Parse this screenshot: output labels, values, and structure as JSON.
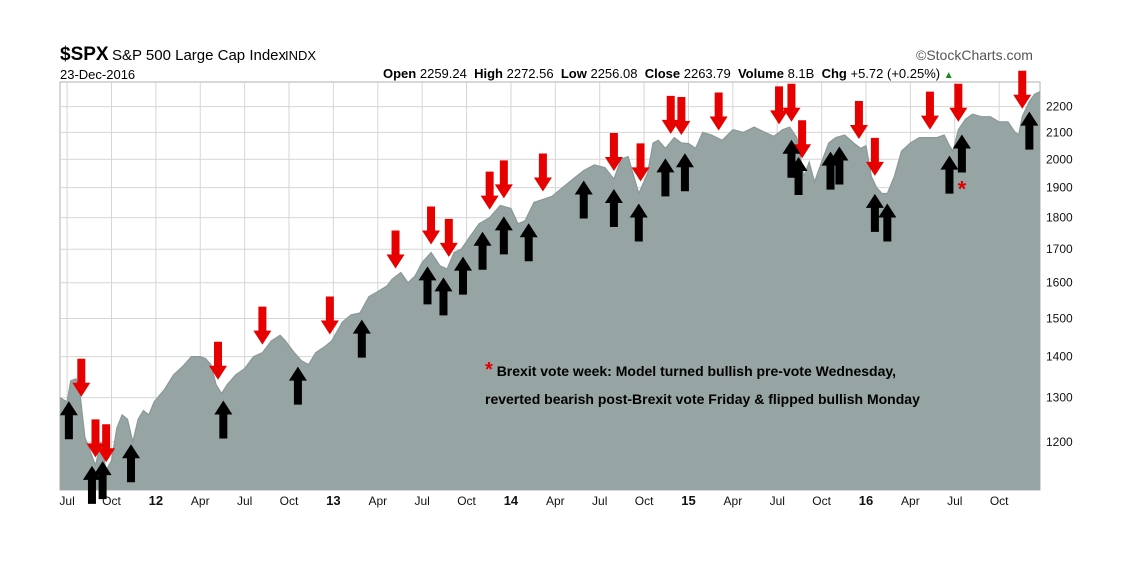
{
  "header": {
    "symbol": "$SPX",
    "name": "S&P 500 Large Cap Index",
    "index": "INDX",
    "date": "23-Dec-2016",
    "brand": "©StockCharts.com",
    "open_label": "Open",
    "open": "2259.24",
    "high_label": "High",
    "high": "2272.56",
    "low_label": "Low",
    "low": "2256.08",
    "close_label": "Close",
    "close": "2263.79",
    "volume_label": "Volume",
    "volume": "8.1B",
    "chg_label": "Chg",
    "chg": "+5.72 (+0.25%)"
  },
  "annotation": {
    "star": "*",
    "line1": "Brexit vote week: Model turned bullish pre-vote Wednesday,",
    "line2": "reverted bearish post-Brexit vote Friday & flipped bullish Monday"
  },
  "colors": {
    "area_fill": "#96a4a3",
    "area_line": "#8a9998",
    "bear_arrow": "#e60000",
    "bull_arrow": "#000000",
    "star": "#e00000"
  },
  "chart_data": {
    "type": "area",
    "title": "$SPX S&P 500 Large Cap Index INDX",
    "scale": "log",
    "ylim": [
      1100,
      2300
    ],
    "yticks": [
      1200,
      1300,
      1400,
      1500,
      1600,
      1700,
      1800,
      1900,
      2000,
      2100,
      2200
    ],
    "xlim": [
      2011.46,
      2016.98
    ],
    "xticks": [
      {
        "t": 2011.5,
        "label": "Jul"
      },
      {
        "t": 2011.75,
        "label": "Oct"
      },
      {
        "t": 2012.0,
        "label": "12",
        "year": true
      },
      {
        "t": 2012.25,
        "label": "Apr"
      },
      {
        "t": 2012.5,
        "label": "Jul"
      },
      {
        "t": 2012.75,
        "label": "Oct"
      },
      {
        "t": 2013.0,
        "label": "13",
        "year": true
      },
      {
        "t": 2013.25,
        "label": "Apr"
      },
      {
        "t": 2013.5,
        "label": "Jul"
      },
      {
        "t": 2013.75,
        "label": "Oct"
      },
      {
        "t": 2014.0,
        "label": "14",
        "year": true
      },
      {
        "t": 2014.25,
        "label": "Apr"
      },
      {
        "t": 2014.5,
        "label": "Jul"
      },
      {
        "t": 2014.75,
        "label": "Oct"
      },
      {
        "t": 2015.0,
        "label": "15",
        "year": true
      },
      {
        "t": 2015.25,
        "label": "Apr"
      },
      {
        "t": 2015.5,
        "label": "Jul"
      },
      {
        "t": 2015.75,
        "label": "Oct"
      },
      {
        "t": 2016.0,
        "label": "16",
        "year": true
      },
      {
        "t": 2016.25,
        "label": "Apr"
      },
      {
        "t": 2016.5,
        "label": "Jul"
      },
      {
        "t": 2016.75,
        "label": "Oct"
      }
    ],
    "series": [
      {
        "x": [
          2011.46,
          2011.5,
          2011.52,
          2011.55,
          2011.57,
          2011.6,
          2011.63,
          2011.66,
          2011.69,
          2011.72,
          2011.75,
          2011.78,
          2011.81,
          2011.84,
          2011.87,
          2011.9,
          2011.93,
          2011.96,
          2011.99,
          2012.05,
          2012.1,
          2012.15,
          2012.2,
          2012.25,
          2012.28,
          2012.31,
          2012.34,
          2012.37,
          2012.4,
          2012.45,
          2012.5,
          2012.55,
          2012.6,
          2012.65,
          2012.7,
          2012.73,
          2012.78,
          2012.82,
          2012.86,
          2012.9,
          2012.95,
          2012.99,
          2013.05,
          2013.1,
          2013.15,
          2013.2,
          2013.25,
          2013.3,
          2013.33,
          2013.38,
          2013.42,
          2013.46,
          2013.5,
          2013.55,
          2013.6,
          2013.64,
          2013.68,
          2013.72,
          2013.77,
          2013.82,
          2013.88,
          2013.94,
          2014.0,
          2014.04,
          2014.08,
          2014.13,
          2014.18,
          2014.23,
          2014.29,
          2014.35,
          2014.41,
          2014.47,
          2014.53,
          2014.58,
          2014.62,
          2014.66,
          2014.72,
          2014.77,
          2014.8,
          2014.83,
          2014.87,
          2014.92,
          2014.96,
          2015.0,
          2015.04,
          2015.08,
          2015.13,
          2015.19,
          2015.25,
          2015.31,
          2015.37,
          2015.43,
          2015.48,
          2015.53,
          2015.57,
          2015.61,
          2015.65,
          2015.68,
          2015.71,
          2015.75,
          2015.79,
          2015.83,
          2015.88,
          2015.93,
          2015.97,
          2016.0,
          2016.03,
          2016.06,
          2016.09,
          2016.12,
          2016.16,
          2016.2,
          2016.25,
          2016.3,
          2016.35,
          2016.4,
          2016.44,
          2016.47,
          2016.49,
          2016.52,
          2016.56,
          2016.6,
          2016.65,
          2016.7,
          2016.75,
          2016.8,
          2016.84,
          2016.86,
          2016.88,
          2016.92,
          2016.95,
          2016.98
        ],
        "y": [
          1300,
          1290,
          1340,
          1345,
          1320,
          1210,
          1180,
          1150,
          1200,
          1140,
          1160,
          1230,
          1260,
          1250,
          1200,
          1250,
          1270,
          1260,
          1290,
          1320,
          1355,
          1375,
          1400,
          1400,
          1395,
          1380,
          1330,
          1310,
          1330,
          1355,
          1370,
          1400,
          1410,
          1440,
          1455,
          1440,
          1410,
          1390,
          1380,
          1410,
          1425,
          1440,
          1490,
          1510,
          1515,
          1560,
          1575,
          1590,
          1610,
          1630,
          1600,
          1620,
          1660,
          1690,
          1650,
          1640,
          1690,
          1700,
          1740,
          1780,
          1800,
          1840,
          1830,
          1780,
          1790,
          1850,
          1860,
          1870,
          1900,
          1930,
          1960,
          1980,
          1970,
          1930,
          2000,
          2010,
          1880,
          1950,
          2060,
          2070,
          2040,
          2080,
          2060,
          2058,
          2040,
          2100,
          2090,
          2070,
          2110,
          2100,
          2120,
          2100,
          2085,
          2110,
          2120,
          2080,
          1940,
          1990,
          1920,
          1990,
          2060,
          2080,
          2090,
          2060,
          2040,
          2050,
          1940,
          1900,
          1880,
          1880,
          1940,
          2030,
          2060,
          2080,
          2080,
          2080,
          2090,
          2050,
          2030,
          2110,
          2150,
          2170,
          2160,
          2160,
          2140,
          2140,
          2100,
          2090,
          2160,
          2220,
          2250,
          2260
        ]
      }
    ],
    "bearish_arrows_red": [
      2011.58,
      2011.66,
      2011.72,
      2012.35,
      2012.6,
      2012.98,
      2013.35,
      2013.55,
      2013.65,
      2013.88,
      2013.96,
      2014.18,
      2014.58,
      2014.73,
      2014.9,
      2014.96,
      2015.17,
      2015.51,
      2015.58,
      2015.64,
      2015.96,
      2016.05,
      2016.36,
      2016.52,
      2016.88
    ],
    "bullish_arrows_black": [
      2011.51,
      2011.64,
      2011.7,
      2011.86,
      2012.38,
      2012.8,
      2013.16,
      2013.53,
      2013.62,
      2013.73,
      2013.84,
      2013.96,
      2014.1,
      2014.41,
      2014.58,
      2014.72,
      2014.87,
      2014.98,
      2015.58,
      2015.62,
      2015.8,
      2015.85,
      2016.05,
      2016.12,
      2016.47,
      2016.54,
      2016.92
    ],
    "brexit_star_x": 2016.54
  }
}
